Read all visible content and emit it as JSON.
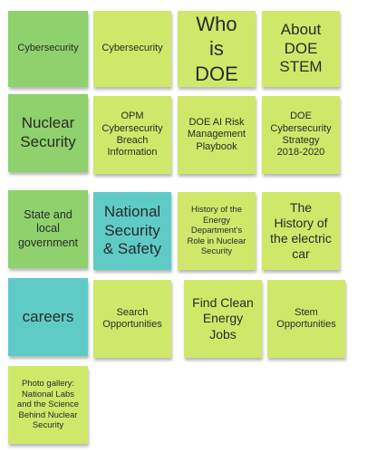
{
  "colors": {
    "green": "#8fd16c",
    "lime": "#cfe86a",
    "teal": "#5ecbc6",
    "text": "#2a2a2a"
  },
  "notes": [
    {
      "text": "Cybersecurity",
      "color": "green"
    },
    {
      "text": "Cybersecurity",
      "color": "lime"
    },
    {
      "text": "Who is DOE",
      "color": "lime"
    },
    {
      "text": "About DOE STEM",
      "color": "lime"
    },
    {
      "text": "Nuclear Security",
      "color": "green"
    },
    {
      "text": "OPM Cybersecurity Breach Information",
      "color": "lime"
    },
    {
      "text": "DOE AI Risk Management Playbook",
      "color": "lime"
    },
    {
      "text": "DOE Cybersecurity Strategy 2018-2020",
      "color": "lime"
    },
    {
      "text": "State and local government",
      "color": "green"
    },
    {
      "text": "National Security & Safety",
      "color": "teal"
    },
    {
      "text": "History of the Energy Department's Role in Nuclear Security",
      "color": "lime"
    },
    {
      "text": "The History of the electric car",
      "color": "lime"
    },
    {
      "text": "careers",
      "color": "teal"
    },
    {
      "text": "Search Opportunities",
      "color": "lime"
    },
    {
      "text": "Find Clean Energy Jobs",
      "color": "lime"
    },
    {
      "text": "Stem Opportunities",
      "color": "lime"
    },
    {
      "text": "Photo gallery: National Labs and the Science Behind Nuclear Security",
      "color": "lime"
    }
  ]
}
